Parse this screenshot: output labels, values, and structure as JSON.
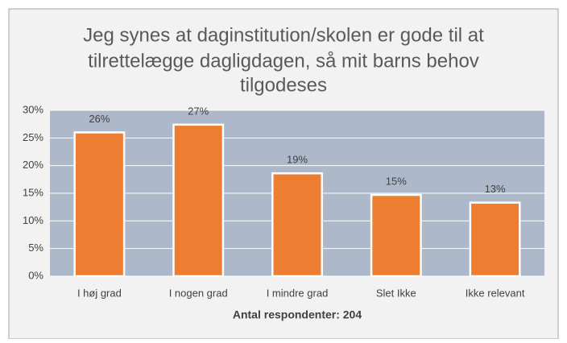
{
  "chart_data": {
    "type": "bar",
    "title": [
      "Jeg synes at daginstitution/skolen er gode til at",
      "tilrettelægge dagligdagen, så mit barns behov",
      "tilgodeses"
    ],
    "x_label": "Antal respondenter: 204",
    "categories": [
      "I høj grad",
      "I nogen grad",
      "I mindre grad",
      "Slet Ikke",
      "Ikke relevant"
    ],
    "values": [
      26.0,
      27.4,
      18.6,
      14.7,
      13.3
    ],
    "value_labels": [
      "26%",
      "27%",
      "19%",
      "15%",
      "13%"
    ],
    "color": "#ed7d31",
    "ylim": [
      0,
      30
    ],
    "yticks": [
      {
        "value": 0,
        "label": "0%"
      },
      {
        "value": 5,
        "label": "5%"
      },
      {
        "value": 10,
        "label": "10%"
      },
      {
        "value": 15,
        "label": "15%"
      },
      {
        "value": 20,
        "label": "20%"
      },
      {
        "value": 25,
        "label": "25%"
      },
      {
        "value": 30,
        "label": "30%"
      }
    ],
    "grid": true
  }
}
